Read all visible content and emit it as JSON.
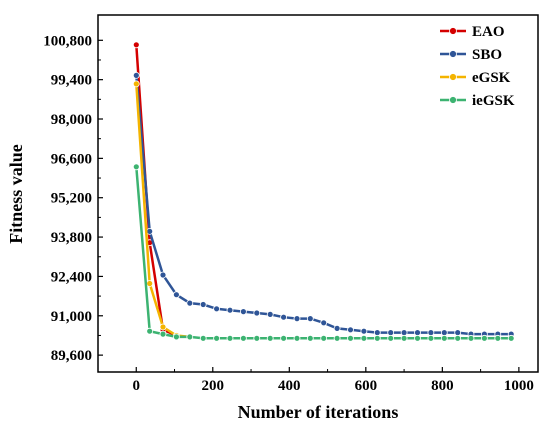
{
  "chart_data": {
    "type": "line",
    "xlabel": "Number of iterations",
    "ylabel": "Fitness value",
    "xlim": [
      -100,
      1050
    ],
    "ylim": [
      89000,
      101700
    ],
    "xticks": [
      0,
      200,
      400,
      600,
      800,
      1000
    ],
    "xtick_labels": [
      "0",
      "200",
      "400",
      "600",
      "800",
      "1000"
    ],
    "yticks": [
      89600,
      91000,
      92400,
      93800,
      95200,
      96600,
      98000,
      99400,
      100800
    ],
    "ytick_labels": [
      "89,600",
      "91,000",
      "92,400",
      "93,800",
      "95,200",
      "96,600",
      "98,000",
      "99,400",
      "100,800"
    ],
    "grid": false,
    "legend_position": "top-right",
    "x": [
      0,
      35,
      70,
      105,
      140,
      175,
      210,
      245,
      280,
      315,
      350,
      385,
      420,
      455,
      490,
      525,
      560,
      595,
      630,
      665,
      700,
      735,
      770,
      805,
      840,
      875,
      910,
      945,
      980
    ],
    "series": [
      {
        "name": "EAO",
        "color": "#d40000",
        "values": [
          100640,
          93600,
          90500,
          90300,
          null,
          null,
          null,
          null,
          null,
          null,
          null,
          null,
          null,
          null,
          null,
          null,
          null,
          null,
          null,
          null,
          null,
          null,
          null,
          null,
          null,
          null,
          null,
          null,
          null
        ]
      },
      {
        "name": "SBO",
        "color": "#2f5597",
        "values": [
          99550,
          94000,
          92450,
          91750,
          91450,
          91400,
          91250,
          91200,
          91150,
          91100,
          91050,
          90950,
          90900,
          90900,
          90750,
          90550,
          90500,
          90450,
          90400,
          90400,
          90400,
          90400,
          90400,
          90400,
          90400,
          90350,
          90350,
          90350,
          90350
        ]
      },
      {
        "name": "eGSK",
        "color": "#f4b400",
        "values": [
          99250,
          92150,
          90600,
          90300,
          90250,
          null,
          null,
          null,
          null,
          null,
          null,
          null,
          null,
          null,
          null,
          null,
          null,
          null,
          null,
          null,
          null,
          null,
          null,
          null,
          null,
          null,
          null,
          null,
          null
        ]
      },
      {
        "name": "ieGSK",
        "color": "#3cb371",
        "values": [
          96300,
          90450,
          90350,
          90250,
          90250,
          90200,
          90200,
          90200,
          90200,
          90200,
          90200,
          90200,
          90200,
          90200,
          90200,
          90200,
          90200,
          90200,
          90200,
          90200,
          90200,
          90200,
          90200,
          90200,
          90200,
          90200,
          90200,
          90200,
          90200
        ]
      }
    ]
  }
}
